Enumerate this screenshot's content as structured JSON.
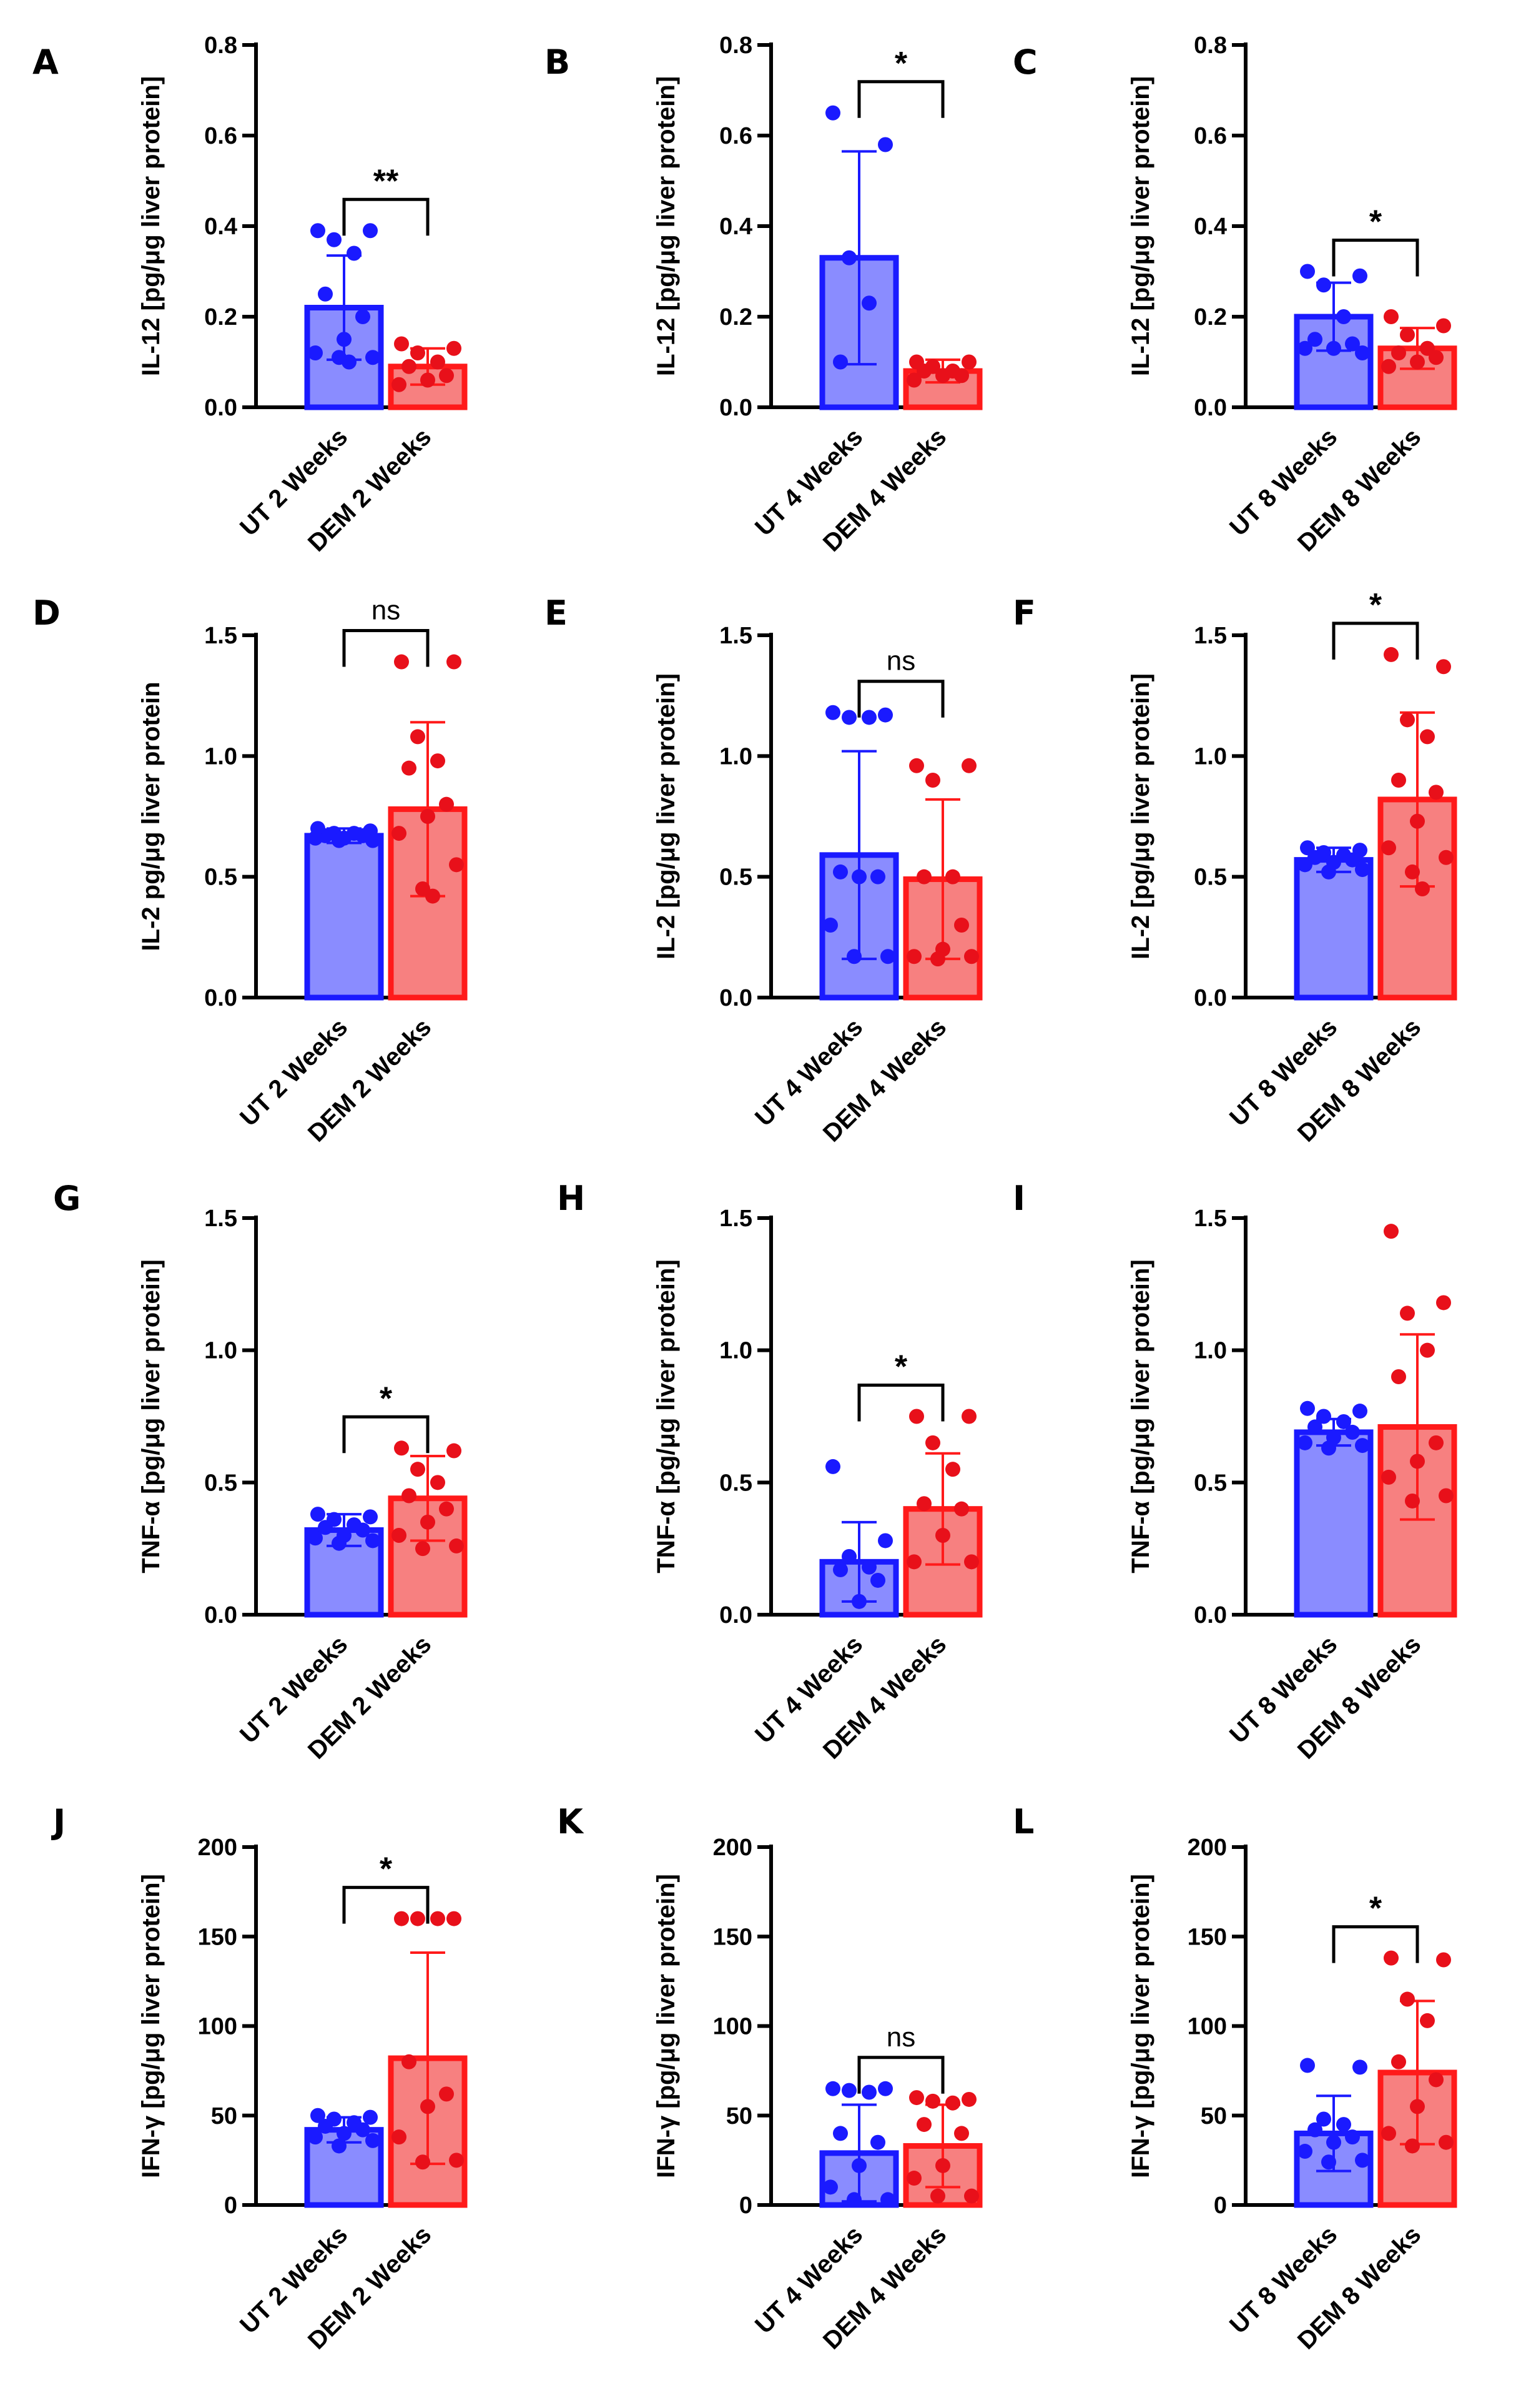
{
  "colors": {
    "ut_fill": "#8a8cff",
    "ut_stroke": "#1a1aff",
    "ut_dot": "#1a1aff",
    "dem_fill": "#f78080",
    "dem_stroke": "#ff1a1a",
    "dem_dot": "#e8101a",
    "axis": "#000000"
  },
  "chart_data": [
    {
      "letter": "A",
      "type": "bar",
      "ylabel": "IL-12 [pg/μg liver protein]",
      "ylim": [
        0,
        0.8
      ],
      "ticks": [
        0.0,
        0.2,
        0.4,
        0.6,
        0.8
      ],
      "tick_labels": [
        "0.0",
        "0.2",
        "0.4",
        "0.6",
        "0.8"
      ],
      "categories": [
        "UT 2 Weeks",
        "DEM 2 Weeks"
      ],
      "values": [
        0.22,
        0.09
      ],
      "errors": [
        0.115,
        0.04
      ],
      "points": [
        [
          0.39,
          0.39,
          0.37,
          0.34,
          0.25,
          0.2,
          0.15,
          0.12,
          0.11,
          0.11,
          0.1
        ],
        [
          0.14,
          0.13,
          0.12,
          0.1,
          0.09,
          0.07,
          0.06,
          0.05
        ]
      ],
      "significance": "**"
    },
    {
      "letter": "B",
      "type": "bar",
      "ylabel": "IL-12 [pg/μg liver protein]",
      "ylim": [
        0,
        0.8
      ],
      "ticks": [
        0.0,
        0.2,
        0.4,
        0.6,
        0.8
      ],
      "tick_labels": [
        "0.0",
        "0.2",
        "0.4",
        "0.6",
        "0.8"
      ],
      "categories": [
        "UT 4 Weeks",
        "DEM 4 Weeks"
      ],
      "values": [
        0.33,
        0.08
      ],
      "errors": [
        0.235,
        0.025
      ],
      "points": [
        [
          0.65,
          0.58,
          0.33,
          0.23,
          0.1
        ],
        [
          0.1,
          0.1,
          0.09,
          0.08,
          0.08,
          0.07,
          0.07,
          0.06
        ]
      ],
      "significance": "*"
    },
    {
      "letter": "C",
      "type": "bar",
      "ylabel": "IL-12 [pg/μg liver protein]",
      "ylim": [
        0,
        0.8
      ],
      "ticks": [
        0.0,
        0.2,
        0.4,
        0.6,
        0.8
      ],
      "tick_labels": [
        "0.0",
        "0.2",
        "0.4",
        "0.6",
        "0.8"
      ],
      "categories": [
        "UT 8 Weeks",
        "DEM 8 Weeks"
      ],
      "values": [
        0.2,
        0.13
      ],
      "errors": [
        0.075,
        0.045
      ],
      "points": [
        [
          0.3,
          0.29,
          0.27,
          0.2,
          0.15,
          0.14,
          0.13,
          0.13,
          0.12
        ],
        [
          0.2,
          0.18,
          0.16,
          0.13,
          0.12,
          0.11,
          0.1,
          0.09
        ]
      ],
      "significance": "*"
    },
    {
      "letter": "D",
      "type": "bar",
      "ylabel": "IL-2 pg/μg liver protein",
      "ylim": [
        0,
        1.5
      ],
      "ticks": [
        0.0,
        0.5,
        1.0,
        1.5
      ],
      "tick_labels": [
        "0.0",
        "0.5",
        "1.0",
        "1.5"
      ],
      "categories": [
        "UT 2 Weeks",
        "DEM 2 Weeks"
      ],
      "values": [
        0.67,
        0.78
      ],
      "errors": [
        0.03,
        0.36
      ],
      "points": [
        [
          0.7,
          0.69,
          0.68,
          0.68,
          0.67,
          0.67,
          0.66,
          0.66,
          0.65,
          0.65
        ],
        [
          1.39,
          1.39,
          1.08,
          0.98,
          0.95,
          0.8,
          0.75,
          0.68,
          0.55,
          0.45,
          0.42
        ]
      ],
      "significance": "ns"
    },
    {
      "letter": "E",
      "type": "bar",
      "ylabel": "IL-2 [pg/μg liver protein]",
      "ylim": [
        0,
        1.5
      ],
      "ticks": [
        0.0,
        0.5,
        1.0,
        1.5
      ],
      "tick_labels": [
        "0.0",
        "0.5",
        "1.0",
        "1.5"
      ],
      "categories": [
        "UT 4 Weeks",
        "DEM 4 Weeks"
      ],
      "values": [
        0.59,
        0.49
      ],
      "errors": [
        0.43,
        0.33
      ],
      "points": [
        [
          1.18,
          1.17,
          1.16,
          1.16,
          0.52,
          0.5,
          0.5,
          0.3,
          0.17,
          0.17
        ],
        [
          0.96,
          0.96,
          0.9,
          0.5,
          0.5,
          0.3,
          0.2,
          0.17,
          0.17,
          0.16
        ]
      ],
      "significance": "ns"
    },
    {
      "letter": "F",
      "type": "bar",
      "ylabel": "IL-2 [pg/μg liver protein]",
      "ylim": [
        0,
        1.5
      ],
      "ticks": [
        0.0,
        0.5,
        1.0,
        1.5
      ],
      "tick_labels": [
        "0.0",
        "0.5",
        "1.0",
        "1.5"
      ],
      "categories": [
        "UT 8 Weeks",
        "DEM 8 Weeks"
      ],
      "values": [
        0.57,
        0.82
      ],
      "errors": [
        0.05,
        0.36
      ],
      "points": [
        [
          0.62,
          0.61,
          0.6,
          0.59,
          0.58,
          0.57,
          0.56,
          0.55,
          0.53,
          0.52
        ],
        [
          1.42,
          1.37,
          1.15,
          1.08,
          0.9,
          0.85,
          0.73,
          0.62,
          0.58,
          0.52,
          0.45
        ]
      ],
      "significance": "*"
    },
    {
      "letter": "G",
      "type": "bar",
      "ylabel": "TNF-α [pg/μg liver protein]",
      "ylim": [
        0,
        1.5
      ],
      "ticks": [
        0.0,
        0.5,
        1.0,
        1.5
      ],
      "tick_labels": [
        "0.0",
        "0.5",
        "1.0",
        "1.5"
      ],
      "categories": [
        "UT 2 Weeks",
        "DEM 2 Weeks"
      ],
      "values": [
        0.32,
        0.44
      ],
      "errors": [
        0.06,
        0.16
      ],
      "points": [
        [
          0.38,
          0.37,
          0.36,
          0.34,
          0.33,
          0.32,
          0.3,
          0.29,
          0.28,
          0.27
        ],
        [
          0.63,
          0.62,
          0.55,
          0.5,
          0.45,
          0.4,
          0.35,
          0.3,
          0.26,
          0.25
        ]
      ],
      "significance": "*"
    },
    {
      "letter": "H",
      "type": "bar",
      "ylabel": "TNF-α [pg/μg liver protein]",
      "ylim": [
        0,
        1.5
      ],
      "ticks": [
        0.0,
        0.5,
        1.0,
        1.5
      ],
      "tick_labels": [
        "0.0",
        "0.5",
        "1.0",
        "1.5"
      ],
      "categories": [
        "UT 4 Weeks",
        "DEM 4 Weeks"
      ],
      "values": [
        0.2,
        0.4
      ],
      "errors": [
        0.15,
        0.21
      ],
      "points": [
        [
          0.56,
          0.28,
          0.22,
          0.18,
          0.17,
          0.13,
          0.05
        ],
        [
          0.75,
          0.75,
          0.65,
          0.55,
          0.42,
          0.4,
          0.3,
          0.2,
          0.2
        ]
      ],
      "significance": "*"
    },
    {
      "letter": "I",
      "type": "bar",
      "ylabel": "TNF-α [pg/μg liver protein]",
      "ylim": [
        0,
        1.5
      ],
      "ticks": [
        0.0,
        0.5,
        1.0,
        1.5
      ],
      "tick_labels": [
        "0.0",
        "0.5",
        "1.0",
        "1.5"
      ],
      "categories": [
        "UT 8 Weeks",
        "DEM 8 Weeks"
      ],
      "values": [
        0.69,
        0.71
      ],
      "errors": [
        0.05,
        0.35
      ],
      "points": [
        [
          0.78,
          0.77,
          0.75,
          0.73,
          0.71,
          0.69,
          0.67,
          0.65,
          0.64,
          0.63
        ],
        [
          1.45,
          1.18,
          1.14,
          1.0,
          0.9,
          0.65,
          0.58,
          0.52,
          0.45,
          0.43
        ]
      ],
      "significance": ""
    },
    {
      "letter": "J",
      "type": "bar",
      "ylabel": "IFN-γ [pg/μg liver protein]",
      "ylim": [
        0,
        200
      ],
      "ticks": [
        0,
        50,
        100,
        150,
        200
      ],
      "tick_labels": [
        "0",
        "50",
        "100",
        "150",
        "200"
      ],
      "categories": [
        "UT 2 Weeks",
        "DEM 2 Weeks"
      ],
      "values": [
        42,
        82
      ],
      "errors": [
        7,
        59
      ],
      "points": [
        [
          50,
          49,
          48,
          46,
          44,
          42,
          40,
          38,
          36,
          33
        ],
        [
          160,
          160,
          160,
          160,
          80,
          62,
          55,
          38,
          25,
          24
        ]
      ],
      "significance": "*"
    },
    {
      "letter": "K",
      "type": "bar",
      "ylabel": "IFN-γ [pg/μg liver protein]",
      "ylim": [
        0,
        200
      ],
      "ticks": [
        0,
        50,
        100,
        150,
        200
      ],
      "tick_labels": [
        "0",
        "50",
        "100",
        "150",
        "200"
      ],
      "categories": [
        "UT 4 Weeks",
        "DEM 4 Weeks"
      ],
      "values": [
        29,
        33
      ],
      "errors": [
        27,
        23
      ],
      "points": [
        [
          65,
          65,
          64,
          63,
          40,
          35,
          22,
          10,
          3,
          3
        ],
        [
          60,
          59,
          58,
          57,
          45,
          40,
          22,
          15,
          5,
          5
        ]
      ],
      "significance": "ns"
    },
    {
      "letter": "L",
      "type": "bar",
      "ylabel": "IFN-γ [pg/μg liver protein]",
      "ylim": [
        0,
        200
      ],
      "ticks": [
        0,
        50,
        100,
        150,
        200
      ],
      "tick_labels": [
        "0",
        "50",
        "100",
        "150",
        "200"
      ],
      "categories": [
        "UT 8 Weeks",
        "DEM 8 Weeks"
      ],
      "values": [
        40,
        74
      ],
      "errors": [
        21,
        40
      ],
      "points": [
        [
          78,
          77,
          48,
          45,
          42,
          38,
          35,
          30,
          25,
          24
        ],
        [
          138,
          137,
          115,
          103,
          80,
          70,
          55,
          40,
          35,
          33
        ]
      ],
      "significance": "*"
    }
  ]
}
